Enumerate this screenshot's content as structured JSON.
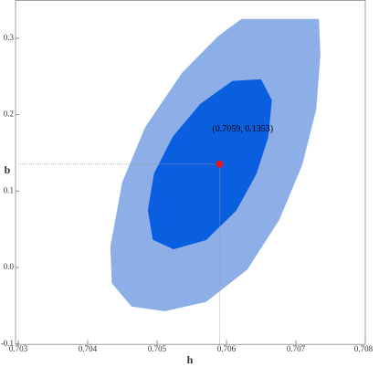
{
  "chart_data": {
    "type": "contour",
    "x_label": "h",
    "y_label": "b",
    "xlim": [
      0.703,
      0.708
    ],
    "xticks": [
      0.703,
      0.704,
      0.705,
      0.706,
      0.707,
      0.708
    ],
    "ylim": [
      -0.1,
      0.35
    ],
    "yticks": [
      {
        "value": -0.1,
        "label": "-0.1"
      },
      {
        "value": 0,
        "label": "0.0"
      },
      0.1,
      0.2,
      0.3
    ],
    "regions": [
      {
        "color": "#8eaee8",
        "x": [
          0.70622,
          0.70732,
          0.70734,
          0.70728,
          0.70708,
          0.70675,
          0.70629,
          0.7057,
          0.70511,
          0.70464,
          0.70436,
          0.70434,
          0.70451,
          0.70484,
          0.70537,
          0.70589
        ],
        "y": [
          0.324,
          0.324,
          0.278,
          0.207,
          0.135,
          0.063,
          -0.002,
          -0.044,
          -0.056,
          -0.05,
          -0.02,
          0.027,
          0.111,
          0.183,
          0.254,
          0.302
        ]
      },
      {
        "color": "#0a5fe0",
        "x": [
          0.70649,
          0.70664,
          0.70659,
          0.70642,
          0.70613,
          0.7057,
          0.70524,
          0.70495,
          0.70488,
          0.70497,
          0.70524,
          0.70563,
          0.70609
        ],
        "y": [
          0.245,
          0.219,
          0.171,
          0.123,
          0.075,
          0.037,
          0.025,
          0.037,
          0.075,
          0.123,
          0.171,
          0.213,
          0.243
        ]
      }
    ],
    "point": {
      "x": 0.7059,
      "y": 0.1353,
      "label": "(0.7059, 0.1353)",
      "color": "#e8141e"
    }
  }
}
